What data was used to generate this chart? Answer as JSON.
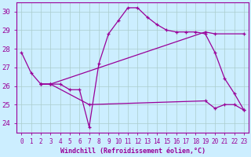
{
  "xlabel": "Windchill (Refroidissement éolien,°C)",
  "background_color": "#cceeff",
  "line_color": "#990099",
  "grid_color": "#aacccc",
  "xlim": [
    -0.5,
    23.5
  ],
  "ylim": [
    23.5,
    30.5
  ],
  "xticks": [
    0,
    1,
    2,
    3,
    4,
    5,
    6,
    7,
    8,
    9,
    10,
    11,
    12,
    13,
    14,
    15,
    16,
    17,
    18,
    19,
    20,
    21,
    22,
    23
  ],
  "yticks": [
    24,
    25,
    26,
    27,
    28,
    29,
    30
  ],
  "lines": [
    {
      "x": [
        0,
        1,
        2,
        3,
        4,
        5,
        6,
        7,
        8,
        9,
        10,
        11,
        12,
        13,
        14,
        15,
        16,
        17,
        18,
        19,
        20,
        21,
        22,
        23
      ],
      "y": [
        27.8,
        26.7,
        26.1,
        26.1,
        26.1,
        25.8,
        25.8,
        23.8,
        27.2,
        28.8,
        29.5,
        30.2,
        30.2,
        29.7,
        29.3,
        29.0,
        28.9,
        28.9,
        28.9,
        28.8,
        27.8,
        26.4,
        25.6,
        24.7
      ]
    },
    {
      "x": [
        2,
        3,
        19,
        20,
        23
      ],
      "y": [
        26.1,
        26.1,
        28.9,
        28.8,
        28.8
      ]
    },
    {
      "x": [
        2,
        3,
        7,
        19,
        20,
        21,
        22,
        23
      ],
      "y": [
        26.1,
        26.1,
        25.0,
        25.2,
        24.8,
        25.0,
        25.0,
        24.7
      ]
    }
  ]
}
